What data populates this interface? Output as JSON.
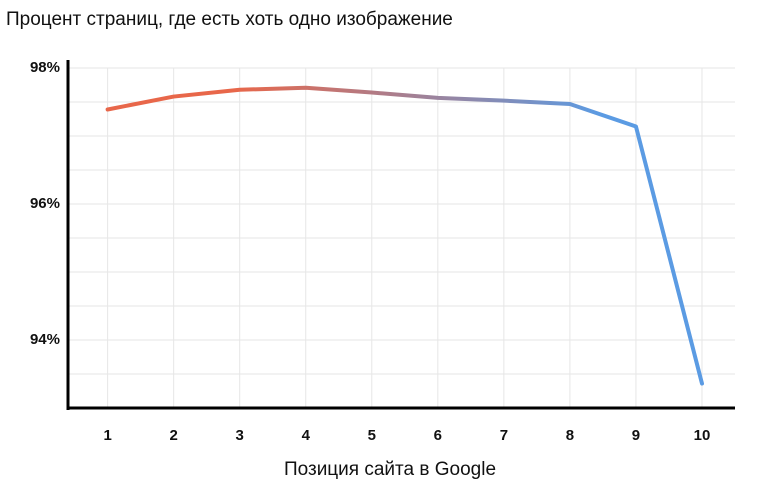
{
  "chart_data": {
    "type": "line",
    "title": "Процент страниц, где есть хоть одно изображение",
    "x_label": "Позиция сайта в Google",
    "x": [
      1,
      2,
      3,
      4,
      5,
      6,
      7,
      8,
      9,
      10
    ],
    "series": [
      {
        "name": null,
        "colors": [
          "#e8674a",
          "#5b9be3"
        ],
        "values": [
          97.39,
          97.58,
          97.68,
          97.71,
          97.64,
          97.56,
          97.52,
          97.47,
          97.14,
          93.36
        ]
      }
    ],
    "xlim": [
      0.4,
      10.5
    ],
    "xticks": [
      1,
      2,
      3,
      4,
      5,
      6,
      7,
      8,
      9,
      10
    ],
    "ylim": [
      93,
      98
    ],
    "yticks": [
      {
        "value": 94,
        "label": "94%"
      },
      {
        "value": 96,
        "label": "96%"
      },
      {
        "value": 98,
        "label": "98%"
      }
    ],
    "minor_yticks": [
      93.5,
      94.5,
      95,
      95.5,
      96.5,
      97,
      97.5
    ],
    "grid": true
  }
}
